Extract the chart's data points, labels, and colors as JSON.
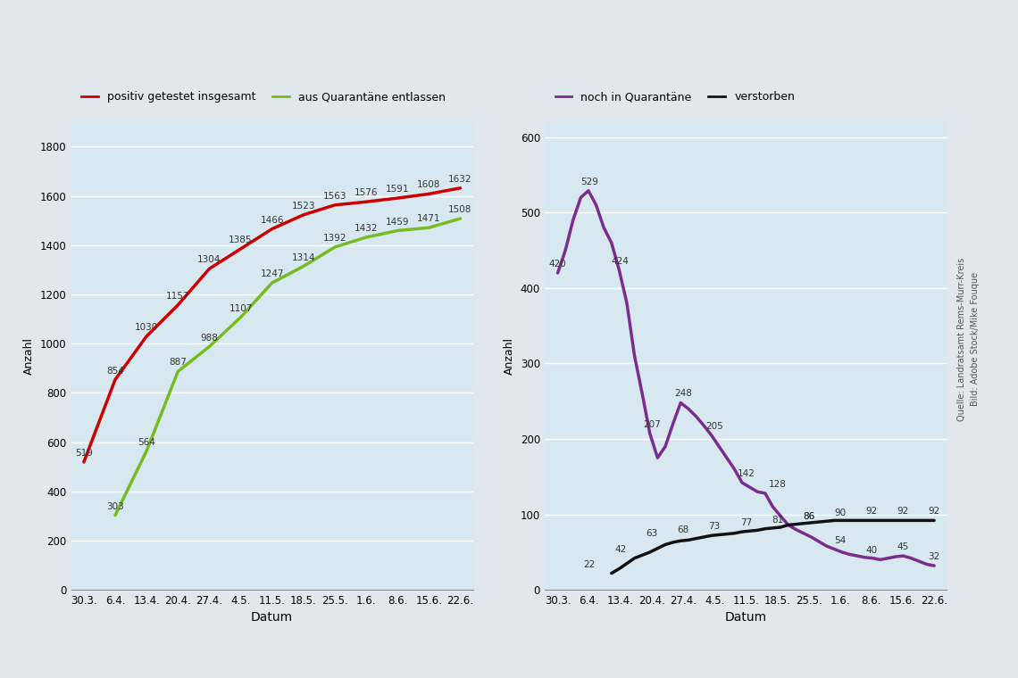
{
  "dates": [
    "30.3.",
    "6.4.",
    "13.4.",
    "20.4.",
    "27.4.",
    "4.5.",
    "11.5.",
    "18.5.",
    "25.5.",
    "1.6.",
    "8.6.",
    "15.6.",
    "22.6."
  ],
  "positiv": [
    519,
    854,
    1030,
    1157,
    1304,
    1385,
    1466,
    1523,
    1563,
    1576,
    1591,
    1608,
    1632
  ],
  "entlassen": [
    null,
    303,
    564,
    887,
    988,
    1107,
    1247,
    1314,
    1392,
    1432,
    1459,
    1471,
    1508
  ],
  "quarantaene_labeled": [
    420,
    529,
    424,
    207,
    248,
    205,
    142,
    128,
    86,
    54,
    40,
    45,
    32
  ],
  "verstorben_labeled": [
    null,
    22,
    42,
    63,
    68,
    73,
    77,
    81,
    86,
    90,
    92,
    92,
    92
  ],
  "quarantaene_full": [
    420,
    450,
    490,
    520,
    529,
    510,
    480,
    460,
    424,
    380,
    310,
    260,
    207,
    175,
    190,
    220,
    248,
    240,
    230,
    218,
    205,
    190,
    175,
    160,
    142,
    136,
    130,
    128,
    110,
    98,
    86,
    80,
    75,
    70,
    64,
    58,
    54,
    50,
    47,
    45,
    43,
    42,
    40,
    42,
    44,
    45,
    42,
    38,
    34,
    32
  ],
  "verstorben_full": [
    null,
    null,
    null,
    null,
    null,
    null,
    null,
    22,
    28,
    35,
    42,
    46,
    50,
    55,
    60,
    63,
    65,
    66,
    68,
    70,
    72,
    73,
    74,
    75,
    77,
    78,
    79,
    81,
    82,
    83,
    86,
    87,
    88,
    89,
    90,
    91,
    92,
    92,
    92,
    92,
    92,
    92,
    92,
    92,
    92,
    92,
    92,
    92,
    92,
    92
  ],
  "color_positiv": "#cc0000",
  "color_entlassen": "#77bb22",
  "color_quarantaene": "#7b2d8b",
  "color_verstorben": "#111111",
  "bg_color": "#d8e8f0",
  "fig_bg": "#e0e8ee",
  "ylabel_left": "Anzahl",
  "xlabel": "Datum",
  "legend1_labels": [
    "positiv getestet insgesamt",
    "aus Quarantäne entlassen"
  ],
  "legend2_labels": [
    "noch in Quarantäne",
    "verstorben"
  ],
  "ylim1": [
    0,
    1900
  ],
  "ylim2": [
    0,
    620
  ],
  "yticks1": [
    0,
    200,
    400,
    600,
    800,
    1000,
    1200,
    1400,
    1600,
    1800
  ],
  "yticks2": [
    0,
    100,
    200,
    300,
    400,
    500,
    600
  ],
  "source_text1": "Quelle: Landratsamt Rems-Murr-Kreis",
  "source_text2": "Bild: Adobe Stock/Mike Fouque"
}
